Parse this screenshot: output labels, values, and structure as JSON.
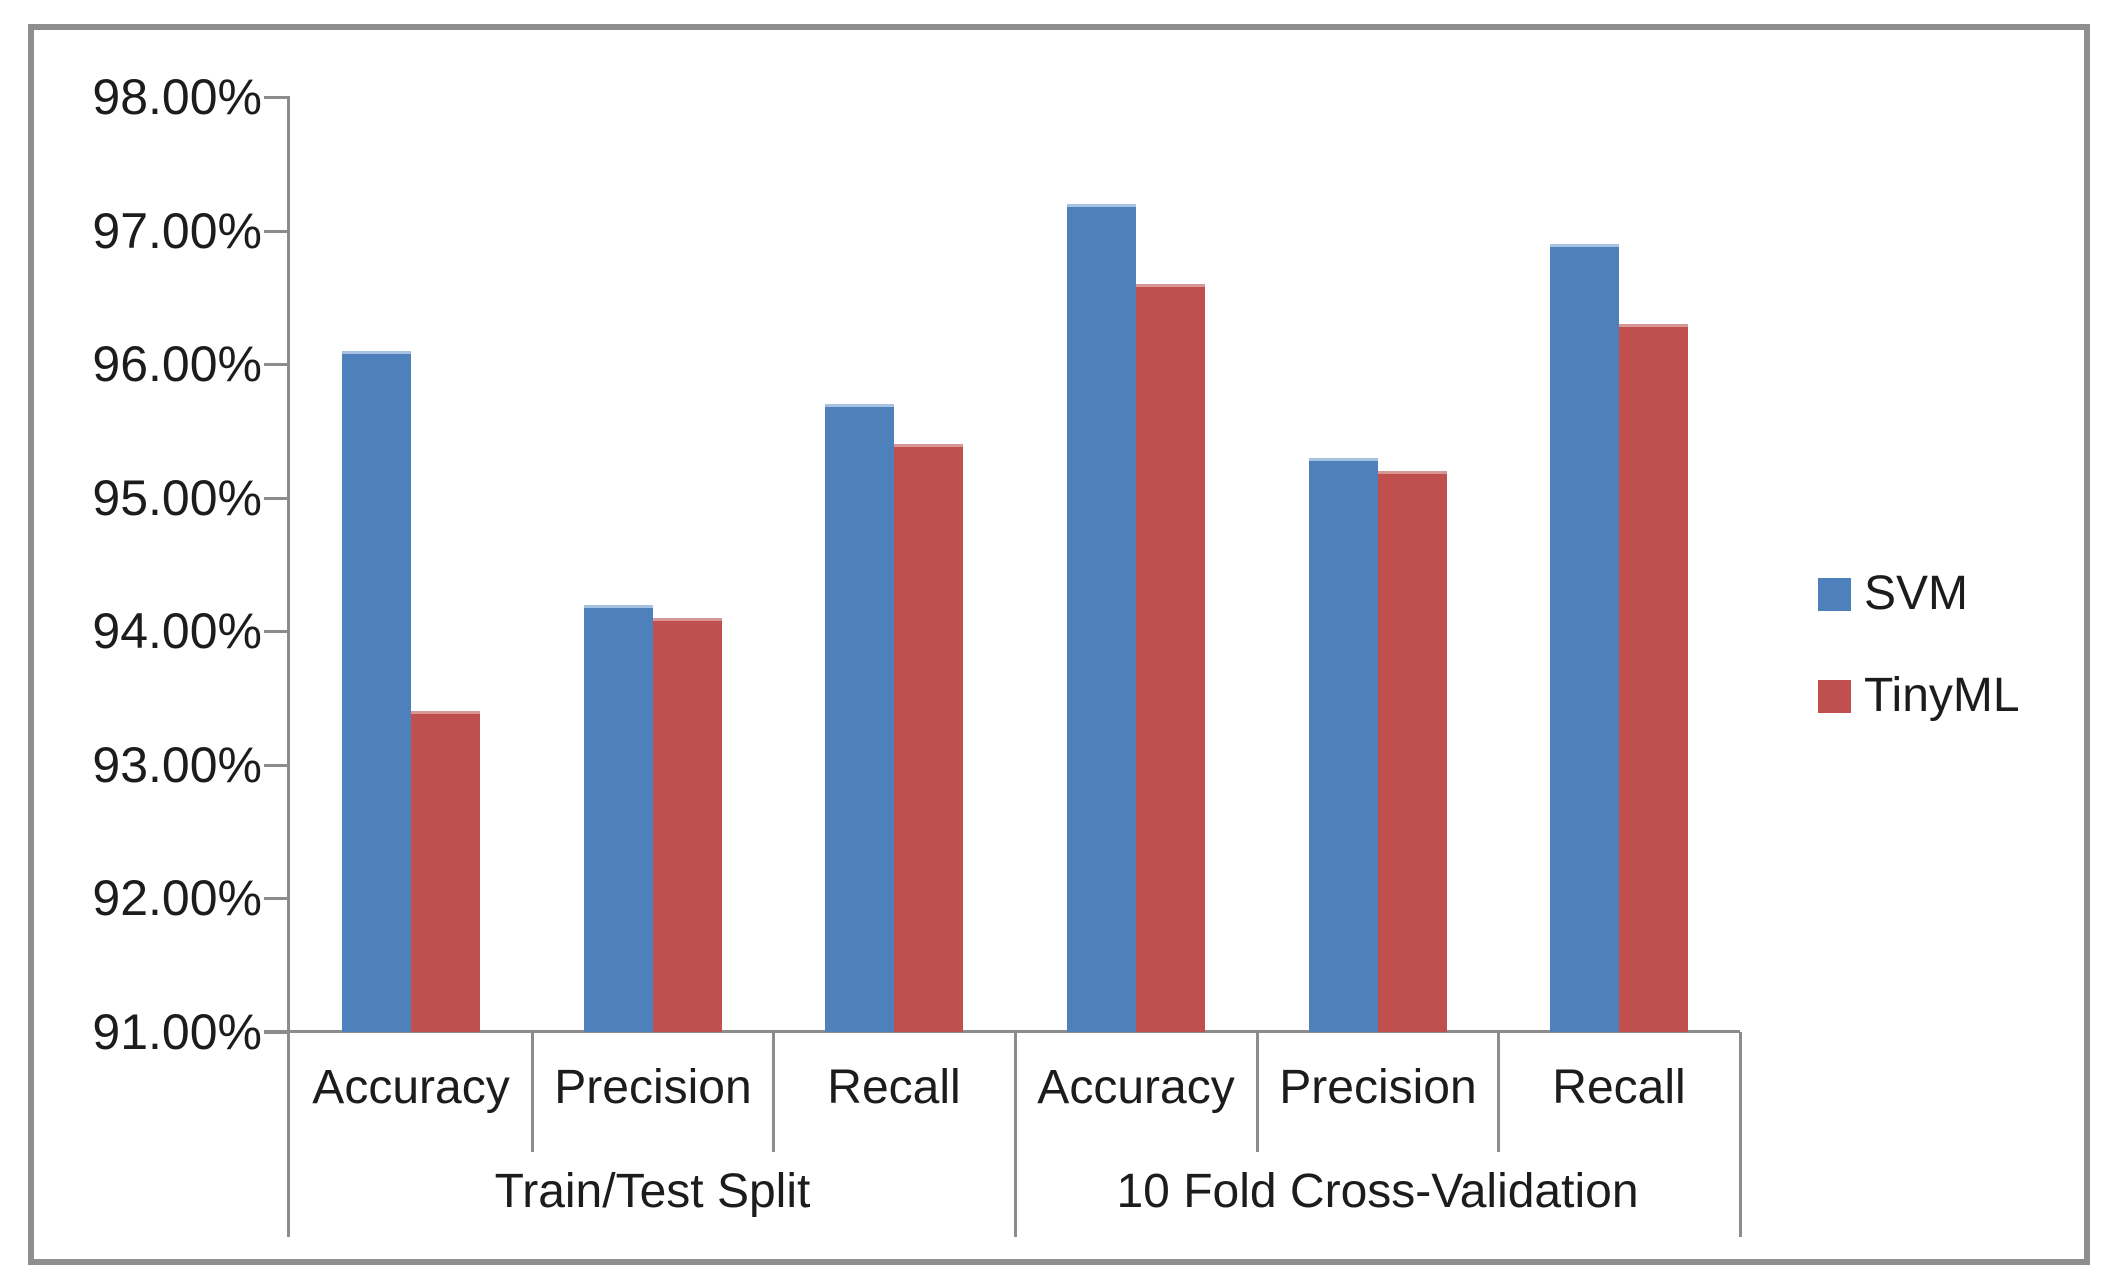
{
  "frame": {
    "border_color": "#8E8E8E",
    "background": "#ffffff"
  },
  "chart_data": {
    "type": "bar",
    "title": "",
    "grid": false,
    "plot_background": "#ffffff",
    "axis_color": "#8C8C8C",
    "text_color": "#1C1C1C",
    "y_axis": {
      "min": 91,
      "max": 98,
      "step": 1,
      "tick_format": "0.00%",
      "tick_labels": [
        "98.00%",
        "97.00%",
        "96.00%",
        "95.00%",
        "94.00%",
        "93.00%",
        "92.00%",
        "91.00%"
      ]
    },
    "x_axis": {
      "groups": [
        {
          "label": "Train/Test Split",
          "categories": [
            "Accuracy",
            "Precision",
            "Recall"
          ]
        },
        {
          "label": "10 Fold Cross-Validation",
          "categories": [
            "Accuracy",
            "Precision",
            "Recall"
          ]
        }
      ]
    },
    "series": [
      {
        "name": "SVM",
        "color": "#4E80BC",
        "edge_color": "#A7C1E0",
        "values_pct": [
          96.1,
          94.2,
          95.7,
          97.2,
          95.3,
          96.9
        ]
      },
      {
        "name": "TinyML",
        "color": "#C0504D",
        "edge_color": "#D69795",
        "values_pct": [
          93.4,
          94.1,
          95.4,
          96.6,
          95.2,
          96.3
        ]
      }
    ],
    "legend": {
      "position": "right",
      "entries": [
        {
          "label": "SVM",
          "color": "#4E80BC"
        },
        {
          "label": "TinyML",
          "color": "#C0504D"
        }
      ]
    }
  }
}
